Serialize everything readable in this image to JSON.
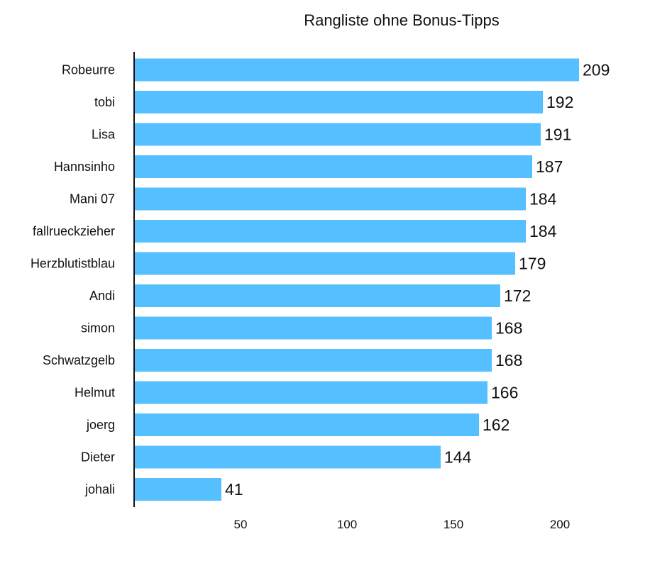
{
  "chart_data": {
    "type": "bar",
    "orientation": "horizontal",
    "title": "Rangliste ohne Bonus-Tipps",
    "xlabel": "",
    "ylabel": "",
    "categories": [
      "Robeurre",
      "tobi",
      "Lisa",
      "Hannsinho",
      "Mani 07",
      "fallrueckzieher",
      "Herzblutistblau",
      "Andi",
      "simon",
      "Schwatzgelb",
      "Helmut",
      "joerg",
      "Dieter",
      "johali"
    ],
    "values": [
      209,
      192,
      191,
      187,
      184,
      184,
      179,
      172,
      168,
      168,
      166,
      162,
      144,
      41
    ],
    "xlim": [
      0,
      220
    ],
    "x_ticks": [
      50,
      100,
      150,
      200
    ],
    "grid": false,
    "legend": "none",
    "bar_color": "#56bfff",
    "axis_color": "#111111"
  }
}
